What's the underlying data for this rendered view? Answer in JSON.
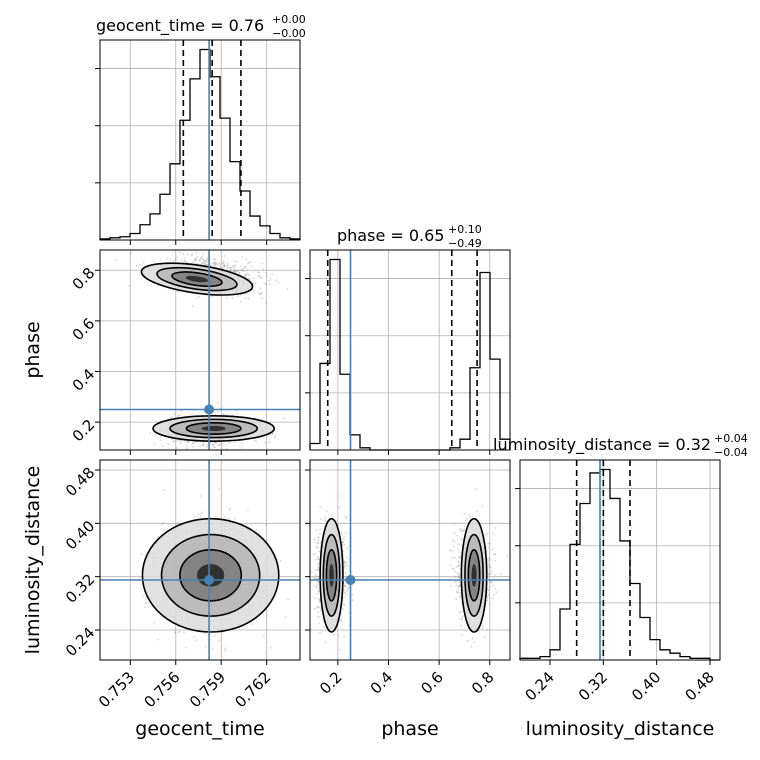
{
  "chart_data": {
    "type": "corner",
    "truths": {
      "geocent_time": 0.7582,
      "phase": 0.25,
      "luminosity_distance": 0.315
    },
    "titles": {
      "geocent_time": {
        "name": "geocent_time",
        "value": "0.76",
        "plus": "+0.00",
        "minus": "−0.00"
      },
      "phase": {
        "name": "phase",
        "value": "0.65",
        "plus": "+0.10",
        "minus": "−0.49"
      },
      "luminosity_distance": {
        "name": "luminosity_distance",
        "value": "0.32",
        "plus": "+0.04",
        "minus": "−0.04"
      }
    },
    "xlabels": [
      "geocent_time",
      "phase",
      "luminosity_distance"
    ],
    "ylabels": [
      "phase",
      "luminosity_distance"
    ],
    "ranges": {
      "geocent_time": [
        0.751,
        0.7642
      ],
      "phase": [
        0.09,
        0.88
      ],
      "luminosity_distance": [
        0.195,
        0.495
      ]
    },
    "ticks": {
      "geocent_time": [
        "0.753",
        "0.756",
        "0.759",
        "0.762"
      ],
      "phase": [
        "0.2",
        "0.4",
        "0.6",
        "0.8"
      ],
      "luminosity_distance": [
        "0.24",
        "0.32",
        "0.40",
        "0.48"
      ]
    },
    "hist_geocent_time": {
      "edges_start": 0.751,
      "bin_width": 0.00066,
      "counts": [
        1,
        2,
        3,
        6,
        14,
        24,
        42,
        70,
        110,
        148,
        175,
        150,
        112,
        72,
        45,
        22,
        13,
        6,
        2,
        1
      ],
      "quantiles": [
        0.7565,
        0.7584,
        0.7603
      ]
    },
    "hist_phase": {
      "edges_start": 0.09,
      "bin_width": 0.0395,
      "counts": [
        3,
        40,
        88,
        35,
        7,
        1,
        0,
        0,
        0,
        0,
        0,
        0,
        0,
        0,
        1,
        5,
        38,
        82,
        42,
        5
      ],
      "quantiles": [
        0.16,
        0.65,
        0.75
      ]
    },
    "hist_luminosity_distance": {
      "edges_start": 0.195,
      "bin_width": 0.015,
      "counts": [
        1,
        1,
        2,
        6,
        30,
        68,
        92,
        110,
        112,
        95,
        70,
        45,
        25,
        12,
        6,
        4,
        2,
        1,
        1,
        0
      ],
      "quantiles": [
        0.28,
        0.32,
        0.36
      ]
    }
  }
}
